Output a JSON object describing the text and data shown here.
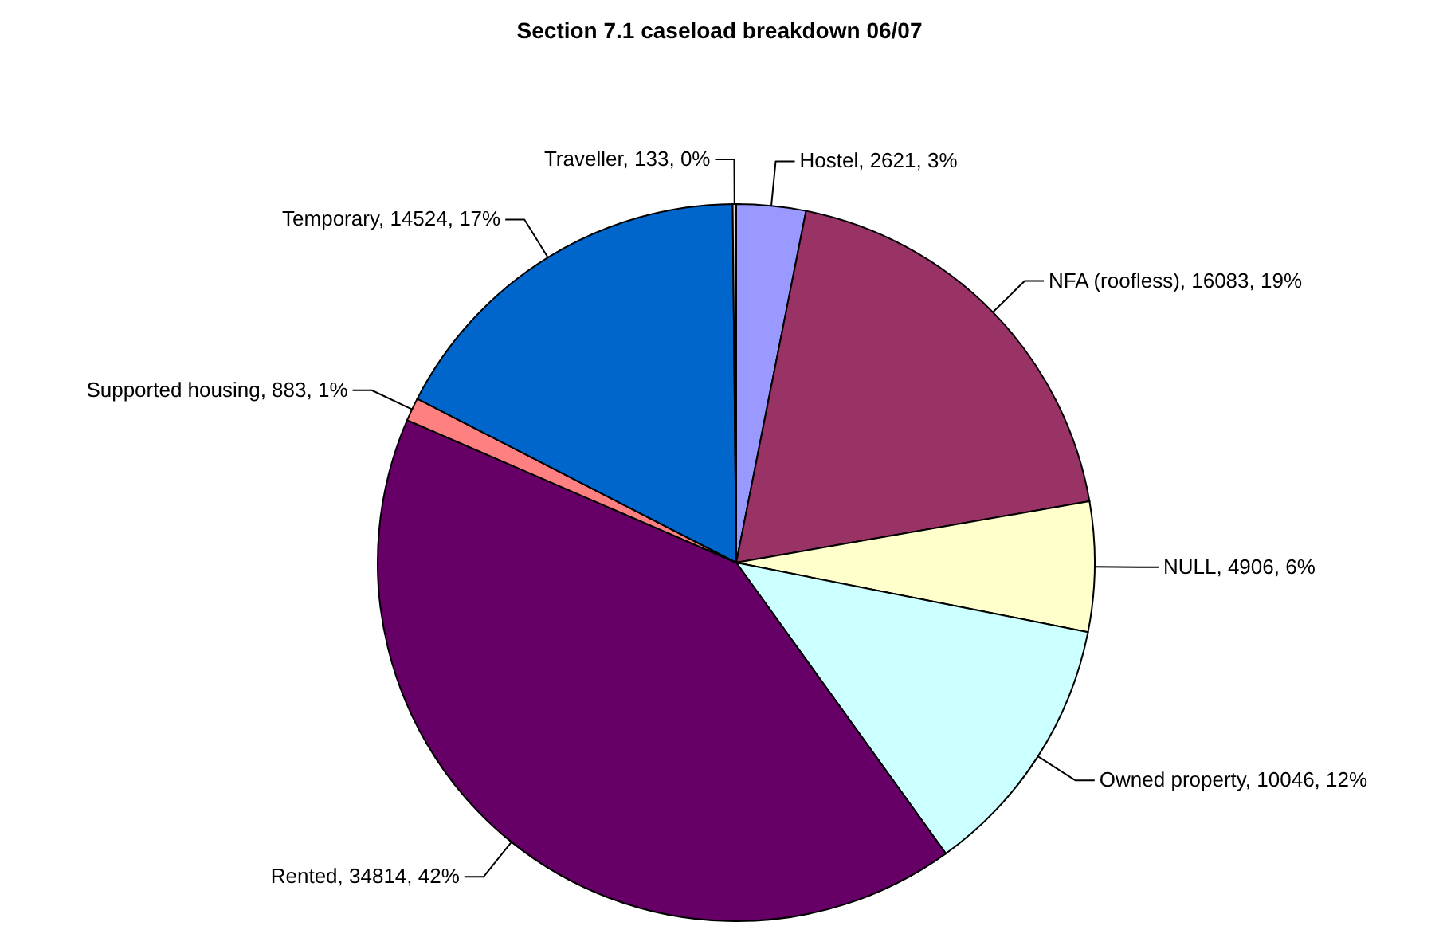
{
  "chart_data": {
    "type": "pie",
    "title": "Section 7.1 caseload breakdown 06/07",
    "categories": [
      "Hostel",
      "NFA (roofless)",
      "NULL",
      "Owned property",
      "Rented",
      "Supported housing",
      "Temporary",
      "Traveller"
    ],
    "values": [
      2621,
      16083,
      4906,
      10046,
      34814,
      883,
      14524,
      133
    ],
    "colors": [
      "#9999ff",
      "#993366",
      "#ffffcc",
      "#ccffff",
      "#660066",
      "#ff8080",
      "#0066cc",
      "#d9d9d9"
    ],
    "legend": false,
    "value_labels": [
      "2621, 3%",
      "16083, 19%",
      "4906, 6%",
      "10046, 12%",
      "34814, 42%",
      "883, 1%",
      "14524, 17%",
      "133, 0%"
    ]
  }
}
